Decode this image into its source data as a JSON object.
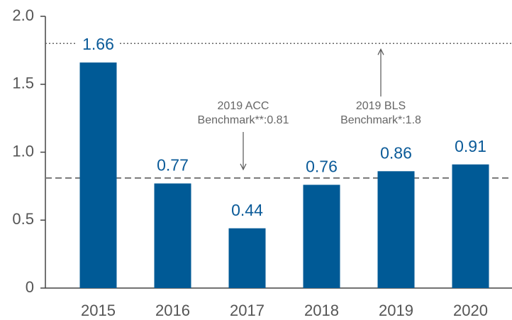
{
  "chart_data": {
    "type": "bar",
    "categories": [
      "2015",
      "2016",
      "2017",
      "2018",
      "2019",
      "2020"
    ],
    "values": [
      1.66,
      0.77,
      0.44,
      0.76,
      0.86,
      0.91
    ],
    "color": "#005a96",
    "ylim": [
      0,
      2
    ],
    "yticks": [
      0,
      0.5,
      {
        "value": 1,
        "label": "1.0"
      },
      1.5,
      {
        "value": 2,
        "label": "2.0"
      }
    ],
    "reference_lines": [
      {
        "value": 0.81,
        "style": "dashed",
        "label": [
          "2019 ACC",
          "Benchmark**:0.81"
        ]
      },
      {
        "value": 1.8,
        "style": "dotted",
        "label": [
          "2019 BLS",
          "Benchmark*:1.8"
        ]
      }
    ]
  }
}
